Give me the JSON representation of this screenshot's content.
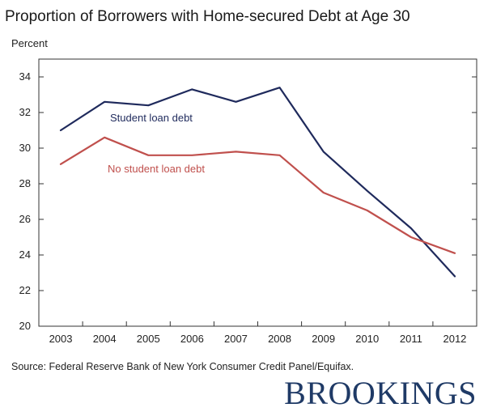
{
  "chart_data": {
    "type": "line",
    "title": "Proportion of Borrowers with Home-secured Debt at Age 30",
    "ylabel": "Percent",
    "xlabel": "",
    "categories": [
      "2003",
      "2004",
      "2005",
      "2006",
      "2007",
      "2008",
      "2009",
      "2010",
      "2011",
      "2012"
    ],
    "yticks": [
      20,
      22,
      24,
      26,
      28,
      30,
      32,
      34
    ],
    "ylim": [
      20,
      35
    ],
    "grid": false,
    "series": [
      {
        "name": "Student loan debt",
        "color": "#1f2a5c",
        "values": [
          31.0,
          32.6,
          32.4,
          33.3,
          32.6,
          33.4,
          29.8,
          27.6,
          25.5,
          22.8
        ]
      },
      {
        "name": "No student loan debt",
        "color": "#c0504d",
        "values": [
          29.1,
          30.6,
          29.6,
          29.6,
          29.8,
          29.6,
          27.5,
          26.5,
          25.0,
          24.1
        ]
      }
    ]
  },
  "source": "Source: Federal Reserve Bank of New York Consumer Credit Panel/Equifax.",
  "logo_text": "BROOKINGS"
}
